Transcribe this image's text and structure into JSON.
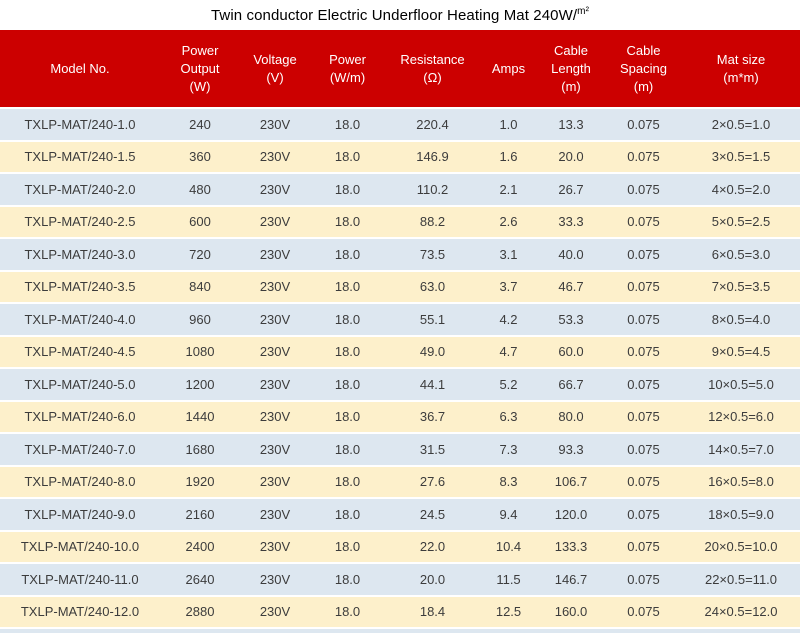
{
  "title": {
    "text": "Twin conductor Electric Underfloor Heating Mat 240W/",
    "unit": "m²"
  },
  "table": {
    "columns": [
      {
        "label": "Model No."
      },
      {
        "label": "Power\nOutput\n(W)"
      },
      {
        "label": "Voltage\n(V)"
      },
      {
        "label": "Power\n(W/m)"
      },
      {
        "label": "Resistance\n(Ω)"
      },
      {
        "label": "Amps"
      },
      {
        "label": "Cable\nLength\n(m)"
      },
      {
        "label": "Cable\nSpacing\n(m)"
      },
      {
        "label": "Mat size\n(m*m)"
      }
    ],
    "rows": [
      [
        "TXLP-MAT/240-1.0",
        "240",
        "230V",
        "18.0",
        "220.4",
        "1.0",
        "13.3",
        "0.075",
        "2×0.5=1.0"
      ],
      [
        "TXLP-MAT/240-1.5",
        "360",
        "230V",
        "18.0",
        "146.9",
        "1.6",
        "20.0",
        "0.075",
        "3×0.5=1.5"
      ],
      [
        "TXLP-MAT/240-2.0",
        "480",
        "230V",
        "18.0",
        "110.2",
        "2.1",
        "26.7",
        "0.075",
        "4×0.5=2.0"
      ],
      [
        "TXLP-MAT/240-2.5",
        "600",
        "230V",
        "18.0",
        "88.2",
        "2.6",
        "33.3",
        "0.075",
        "5×0.5=2.5"
      ],
      [
        "TXLP-MAT/240-3.0",
        "720",
        "230V",
        "18.0",
        "73.5",
        "3.1",
        "40.0",
        "0.075",
        "6×0.5=3.0"
      ],
      [
        "TXLP-MAT/240-3.5",
        "840",
        "230V",
        "18.0",
        "63.0",
        "3.7",
        "46.7",
        "0.075",
        "7×0.5=3.5"
      ],
      [
        "TXLP-MAT/240-4.0",
        "960",
        "230V",
        "18.0",
        "55.1",
        "4.2",
        "53.3",
        "0.075",
        "8×0.5=4.0"
      ],
      [
        "TXLP-MAT/240-4.5",
        "1080",
        "230V",
        "18.0",
        "49.0",
        "4.7",
        "60.0",
        "0.075",
        "9×0.5=4.5"
      ],
      [
        "TXLP-MAT/240-5.0",
        "1200",
        "230V",
        "18.0",
        "44.1",
        "5.2",
        "66.7",
        "0.075",
        "10×0.5=5.0"
      ],
      [
        "TXLP-MAT/240-6.0",
        "1440",
        "230V",
        "18.0",
        "36.7",
        "6.3",
        "80.0",
        "0.075",
        "12×0.5=6.0"
      ],
      [
        "TXLP-MAT/240-7.0",
        "1680",
        "230V",
        "18.0",
        "31.5",
        "7.3",
        "93.3",
        "0.075",
        "14×0.5=7.0"
      ],
      [
        "TXLP-MAT/240-8.0",
        "1920",
        "230V",
        "18.0",
        "27.6",
        "8.3",
        "106.7",
        "0.075",
        "16×0.5=8.0"
      ],
      [
        "TXLP-MAT/240-9.0",
        "2160",
        "230V",
        "18.0",
        "24.5",
        "9.4",
        "120.0",
        "0.075",
        "18×0.5=9.0"
      ],
      [
        "TXLP-MAT/240-10.0",
        "2400",
        "230V",
        "18.0",
        "22.0",
        "10.4",
        "133.3",
        "0.075",
        "20×0.5=10.0"
      ],
      [
        "TXLP-MAT/240-11.0",
        "2640",
        "230V",
        "18.0",
        "20.0",
        "11.5",
        "146.7",
        "0.075",
        "22×0.5=11.0"
      ],
      [
        "TXLP-MAT/240-12.0",
        "2880",
        "230V",
        "18.0",
        "18.4",
        "12.5",
        "160.0",
        "0.075",
        "24×0.5=12.0"
      ]
    ]
  },
  "colors": {
    "header_bg": "#cc0000",
    "header_text": "#ffffff",
    "row_blue": "#dde7f0",
    "row_cream": "#fdf0cb",
    "cell_text": "#3c3c3c",
    "title_text": "#000000",
    "page_bg": "#ffffff"
  }
}
